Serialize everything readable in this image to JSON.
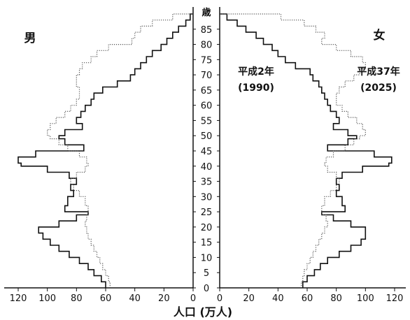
{
  "chart_data": {
    "type": "area",
    "xlabel": "人口 (万人)",
    "age_unit": "歳",
    "x_ticks_left": [
      "120",
      "100",
      "80",
      "60",
      "40",
      "20",
      "0"
    ],
    "x_ticks_right": [
      "0",
      "20",
      "40",
      "60",
      "80",
      "100",
      "120"
    ],
    "age_ticks": [
      "85",
      "80",
      "75",
      "70",
      "65",
      "60",
      "55",
      "50",
      "45",
      "40",
      "35",
      "30",
      "25",
      "20",
      "15",
      "10",
      "5",
      "0"
    ],
    "xlim": [
      0,
      120
    ],
    "ylim": [
      0,
      90
    ],
    "male_label": "男",
    "female_label": "女",
    "ages": [
      0,
      2,
      4,
      6,
      8,
      10,
      12,
      14,
      16,
      18,
      20,
      22,
      24,
      25,
      27,
      30,
      32,
      34,
      36,
      38,
      40,
      41,
      43,
      45,
      47,
      49,
      50,
      52,
      54,
      56,
      58,
      60,
      62,
      64,
      66,
      68,
      70,
      72,
      74,
      76,
      78,
      80,
      82,
      84,
      86,
      88,
      90
    ],
    "series": [
      {
        "name": "平成2年 (1990)",
        "line": "solid",
        "male": [
          60,
          63,
          68,
          72,
          78,
          85,
          92,
          98,
          103,
          106,
          92,
          80,
          72,
          88,
          86,
          82,
          84,
          80,
          85,
          100,
          118,
          120,
          108,
          75,
          88,
          92,
          88,
          76,
          80,
          77,
          74,
          70,
          68,
          62,
          52,
          43,
          40,
          36,
          32,
          28,
          22,
          18,
          14,
          10,
          5,
          2,
          0
        ],
        "female": [
          57,
          60,
          65,
          69,
          74,
          82,
          90,
          97,
          100,
          100,
          90,
          78,
          70,
          86,
          84,
          80,
          82,
          80,
          84,
          98,
          116,
          118,
          106,
          74,
          88,
          94,
          88,
          78,
          82,
          80,
          76,
          74,
          72,
          70,
          68,
          64,
          62,
          52,
          45,
          40,
          36,
          30,
          25,
          18,
          12,
          5,
          0
        ]
      },
      {
        "name": "平成37年 (2025)",
        "line": "dotted",
        "male": [
          57,
          58,
          60,
          62,
          64,
          66,
          68,
          70,
          72,
          73,
          74,
          73,
          72,
          72,
          74,
          78,
          82,
          84,
          80,
          74,
          72,
          73,
          78,
          86,
          92,
          98,
          100,
          98,
          94,
          88,
          84,
          80,
          78,
          78,
          80,
          80,
          78,
          76,
          70,
          66,
          58,
          42,
          40,
          36,
          28,
          14,
          0
        ],
        "female": [
          56,
          57,
          58,
          60,
          62,
          64,
          66,
          68,
          70,
          72,
          74,
          73,
          70,
          70,
          72,
          76,
          80,
          82,
          80,
          74,
          72,
          73,
          78,
          86,
          92,
          96,
          100,
          98,
          94,
          88,
          84,
          80,
          80,
          82,
          86,
          92,
          96,
          100,
          98,
          90,
          80,
          70,
          72,
          66,
          58,
          42,
          0
        ]
      }
    ]
  },
  "annotations": {
    "left_title": "平成2年",
    "left_year": "(1990)",
    "right_title": "平成37年",
    "right_year": "(2025)"
  }
}
